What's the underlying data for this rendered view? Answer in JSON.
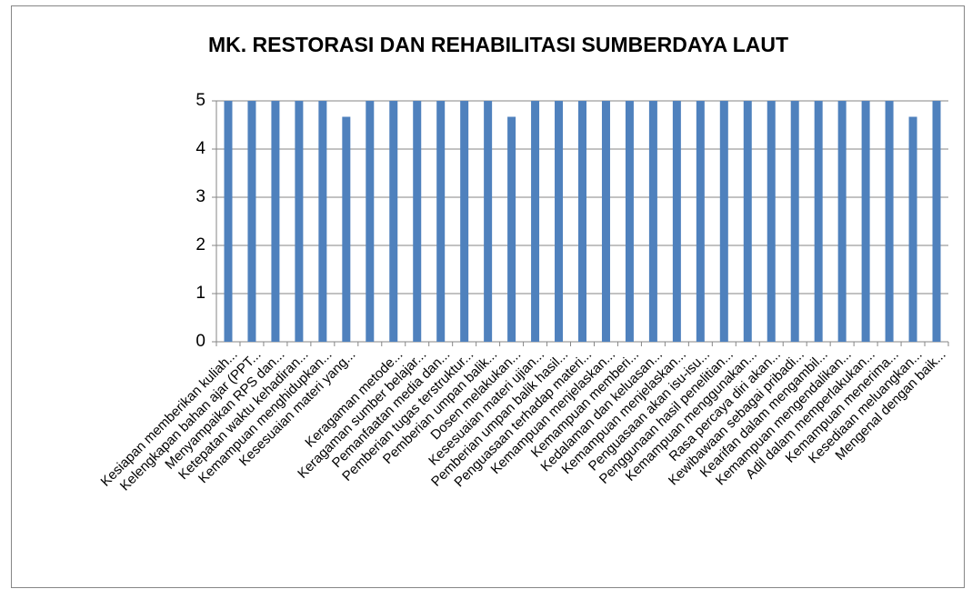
{
  "chart_data": {
    "type": "bar",
    "title": "MK. RESTORASI DAN REHABILITASI SUMBERDAYA LAUT",
    "categories": [
      "Kesiapan memberikan kuliah...",
      "Kelengkapan bahan ajar (PPT...",
      "Menyampaikan RPS dan...",
      "Ketepatan waktu kehadiran...",
      "Kemampuan menghidupkan...",
      "Kesesuaian materi yang...",
      null,
      "Keragaman metode...",
      "Keragaman sumber belajar...",
      "Pemanfaatan media dan...",
      "Pemberian tugas terstruktur...",
      "Pemberian umpan balik...",
      "Dosen melakukan...",
      "Kesesuaian materi ujian...",
      "Pemberian umpan balik hasil...",
      "Penguasaan terhadap materi...",
      "Kemampuan menjelaskan...",
      "Kemampuan memberi...",
      "Kedalaman dan keluasan...",
      "Kemampuan menjelaskan...",
      "Penguasaan akan isu-isu...",
      "Penggunaan hasil penelitian...",
      "Kemampuan menggunakan...",
      "Rasa percaya diri akan...",
      "Kewibawaan sebagai pribadi...",
      "Kearifan dalam mengambil...",
      "Kemampuan mengendalikan...",
      "Adil dalam memperlakukan...",
      "Kemampuan menerima...",
      "Kesediaan meluangkan...",
      "Mengenal dengan baik..."
    ],
    "values": [
      5,
      5,
      5,
      5,
      5,
      4.67,
      5,
      5,
      5,
      5,
      5,
      5,
      4.67,
      5,
      5,
      5,
      5,
      5,
      5,
      5,
      5,
      5,
      5,
      5,
      5,
      5,
      5,
      5,
      5,
      4.67,
      5
    ],
    "color": "#4f81bd",
    "ylim": [
      0,
      5
    ],
    "yticks": [
      0,
      1,
      2,
      3,
      4,
      5
    ],
    "grid": true
  }
}
